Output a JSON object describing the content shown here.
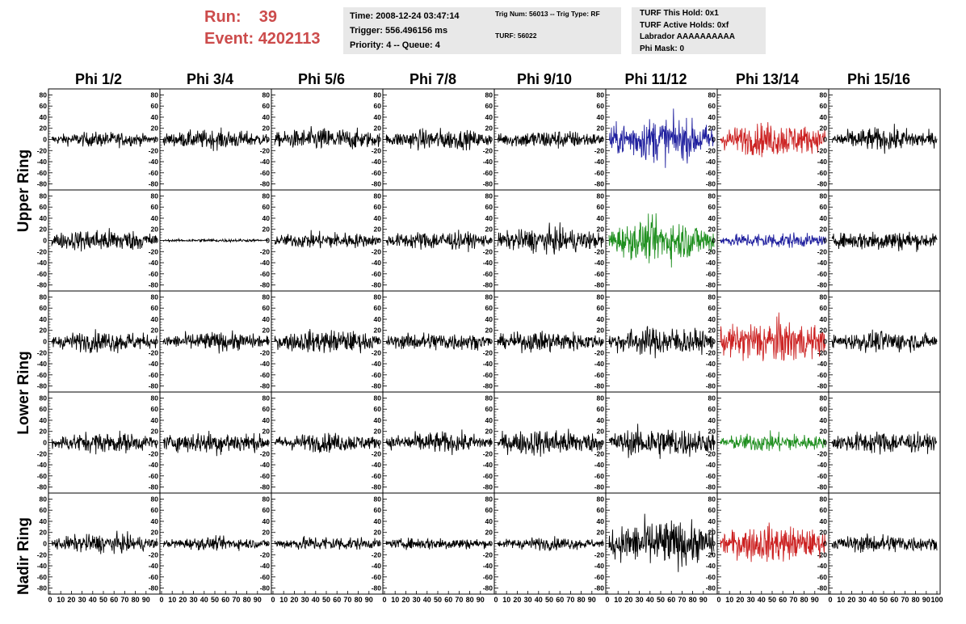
{
  "header": {
    "run_label": "Run:",
    "run_value": "39",
    "event_label": "Event:",
    "event_value": "4202113",
    "accent_color": "#cc4b4b"
  },
  "time_box": {
    "time": "Time: 2008-12-24 03:47:14",
    "trigger": "Trigger: 556.496156 ms",
    "priority": "Priority: 4 -- Queue: 4"
  },
  "trig_box": {
    "trig_num": "Trig Num: 56013 -- Trig Type: RF",
    "turf": "TURF: 56022"
  },
  "turf_box": {
    "this_hold": "TURF This Hold: 0x1",
    "active_holds": "TURF Active Holds: 0xf",
    "labrador": "Labrador AAAAAAAAAA",
    "phi_mask": "Phi Mask: 0"
  },
  "phi_labels": [
    "Phi 1/2",
    "Phi 3/4",
    "Phi 5/6",
    "Phi 7/8",
    "Phi 9/10",
    "Phi 11/12",
    "Phi 13/14",
    "Phi 15/16"
  ],
  "ring_labels": {
    "upper": "Upper Ring",
    "lower": "Lower Ring",
    "nadir": "Nadir Ring"
  },
  "chart_data": {
    "type": "line",
    "description_units": "waveform voltage traces",
    "y_ticks": [
      -80,
      -60,
      -40,
      -20,
      0,
      20,
      40,
      60,
      80
    ],
    "ylim": [
      -85,
      85
    ],
    "xlim": [
      0,
      100
    ],
    "x_tick_labels": [
      "0",
      "10",
      "20",
      "30",
      "40",
      "50",
      "60",
      "70",
      "80",
      "90",
      "100"
    ],
    "rows": 5,
    "cols": 8,
    "colors": {
      "default": "#000000",
      "blue": "#1f1f9e",
      "red": "#cc2222",
      "green": "#1f8f1f"
    },
    "highlight": [
      {
        "row": 0,
        "col": 5,
        "color": "blue",
        "amp": 42
      },
      {
        "row": 0,
        "col": 6,
        "color": "red",
        "amp": 32
      },
      {
        "row": 1,
        "col": 5,
        "color": "green",
        "amp": 40
      },
      {
        "row": 1,
        "col": 6,
        "color": "blue",
        "amp": 15
      },
      {
        "row": 2,
        "col": 6,
        "color": "red",
        "amp": 42
      },
      {
        "row": 3,
        "col": 6,
        "color": "green",
        "amp": 18
      },
      {
        "row": 4,
        "col": 6,
        "color": "red",
        "amp": 35
      }
    ],
    "amplitudes": [
      [
        14,
        18,
        22,
        20,
        18,
        42,
        32,
        22
      ],
      [
        22,
        3,
        16,
        18,
        24,
        40,
        15,
        20
      ],
      [
        20,
        18,
        22,
        18,
        20,
        28,
        42,
        20
      ],
      [
        20,
        22,
        18,
        20,
        26,
        30,
        18,
        22
      ],
      [
        18,
        12,
        14,
        12,
        12,
        45,
        35,
        18
      ]
    ]
  }
}
